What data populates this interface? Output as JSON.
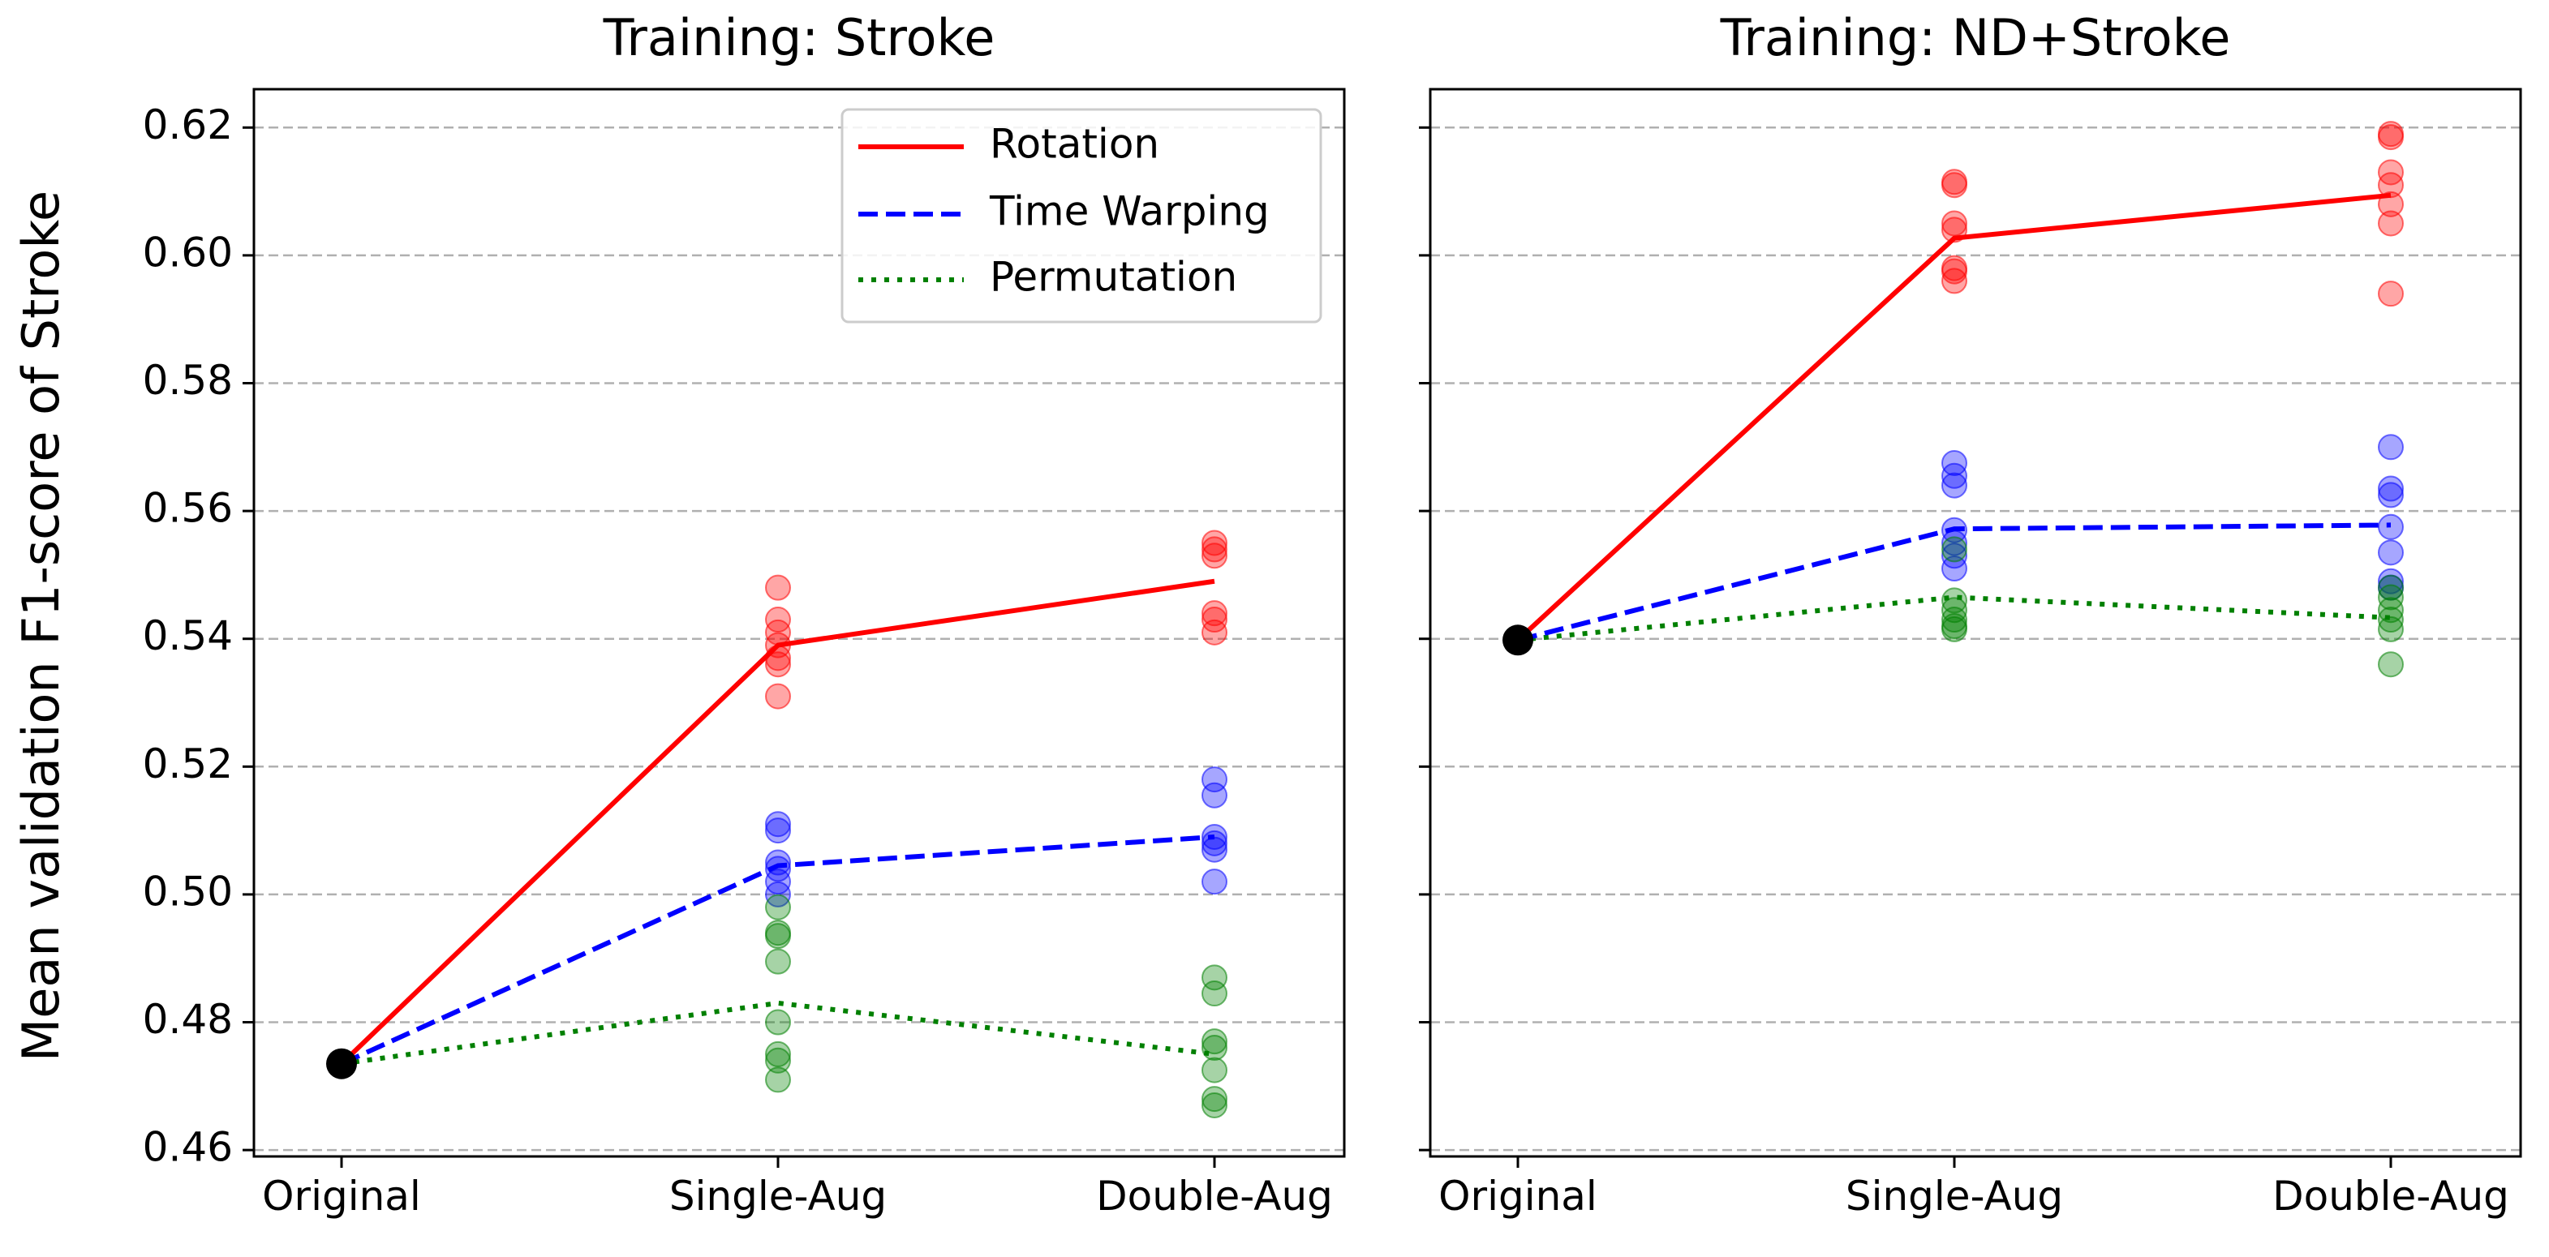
{
  "chart_data": {
    "type": "line",
    "ylabel": "Mean validation F1-score of Stroke",
    "categories": [
      "Original",
      "Single-Aug",
      "Double-Aug"
    ],
    "ylim": [
      0.459,
      0.626
    ],
    "yticks": [
      0.46,
      0.48,
      0.5,
      0.52,
      0.54,
      0.56,
      0.58,
      0.6,
      0.62
    ],
    "ytick_labels": [
      "0.46",
      "0.48",
      "0.50",
      "0.52",
      "0.54",
      "0.56",
      "0.58",
      "0.60",
      "0.62"
    ],
    "grid": "y dashed",
    "colors": {
      "rotation": "#ff0000",
      "time_warping": "#0000ff",
      "permutation": "#008000",
      "origin_point": "#000000",
      "grid": "#b0b0b0"
    },
    "legend": {
      "placement": "top-right of left panel",
      "entries": [
        "Rotation",
        "Time Warping",
        "Permutation"
      ]
    },
    "panels": [
      {
        "title": "Training: Stroke",
        "origin_value": 0.4735,
        "series": [
          {
            "name": "Rotation",
            "style": "solid",
            "values": [
              0.4735,
              0.539,
              0.549
            ],
            "scatter": [
              [
                0.548,
                0.543,
                0.541,
                0.539,
                0.537,
                0.536,
                0.531
              ],
              [
                0.555,
                0.553,
                0.554,
                0.544,
                0.543,
                0.541
              ]
            ]
          },
          {
            "name": "Time Warping",
            "style": "dashed",
            "values": [
              0.4735,
              0.5045,
              0.509
            ],
            "scatter": [
              [
                0.511,
                0.51,
                0.505,
                0.504,
                0.502,
                0.5
              ],
              [
                0.518,
                0.5155,
                0.509,
                0.508,
                0.507,
                0.502
              ]
            ]
          },
          {
            "name": "Permutation",
            "style": "dotted",
            "values": [
              0.4735,
              0.483,
              0.475
            ],
            "scatter": [
              [
                0.498,
                0.494,
                0.4935,
                0.4895,
                0.48,
                0.475,
                0.474,
                0.471
              ],
              [
                0.487,
                0.4845,
                0.477,
                0.476,
                0.4725,
                0.468,
                0.467
              ]
            ]
          }
        ]
      },
      {
        "title": "Training: ND+Stroke",
        "origin_value": 0.5398,
        "series": [
          {
            "name": "Rotation",
            "style": "solid",
            "values": [
              0.5398,
              0.6027,
              0.6094
            ],
            "scatter": [
              [
                0.6115,
                0.611,
                0.605,
                0.604,
                0.598,
                0.5975,
                0.596
              ],
              [
                0.619,
                0.6185,
                0.613,
                0.611,
                0.608,
                0.605,
                0.594
              ]
            ]
          },
          {
            "name": "Time Warping",
            "style": "dashed",
            "values": [
              0.5398,
              0.5572,
              0.5578
            ],
            "scatter": [
              [
                0.5675,
                0.5655,
                0.564,
                0.557,
                0.555,
                0.553,
                0.551
              ],
              [
                0.57,
                0.5635,
                0.5625,
                0.5575,
                0.5535,
                0.549,
                0.548
              ]
            ]
          },
          {
            "name": "Permutation",
            "style": "dotted",
            "values": [
              0.5398,
              0.5465,
              0.5433
            ],
            "scatter": [
              [
                0.554,
                0.546,
                0.5445,
                0.543,
                0.542,
                0.5415
              ],
              [
                0.548,
                0.5465,
                0.5445,
                0.543,
                0.5415,
                0.536
              ]
            ]
          }
        ]
      }
    ]
  }
}
